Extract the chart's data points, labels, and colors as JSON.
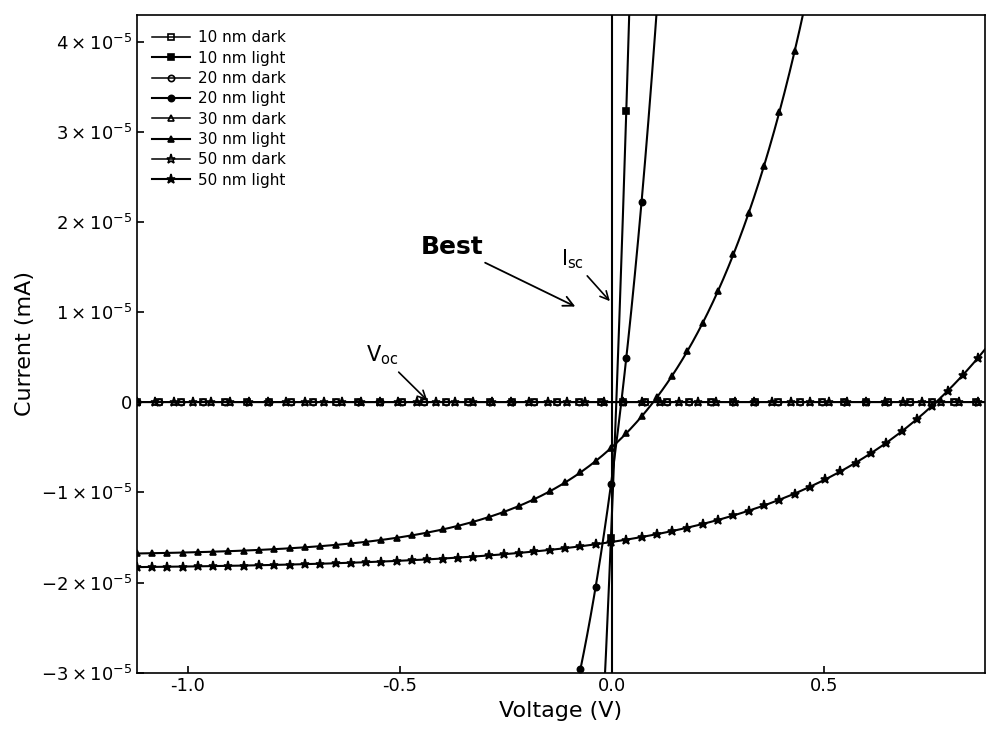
{
  "xlim": [
    -1.12,
    0.88
  ],
  "ylim": [
    -3e-05,
    4.3e-05
  ],
  "xlabel": "Voltage (V)",
  "ylabel": "Current (mA)",
  "ytick_vals": [
    -3e-05,
    -2e-05,
    -1e-05,
    0,
    1e-05,
    2e-05,
    3e-05,
    4e-05
  ],
  "xtick_vals": [
    -1.0,
    -0.5,
    0.0,
    0.5
  ],
  "vline_x": 0.0,
  "background_color": "white",
  "legend_fontsize": 11,
  "label_fontsize": 16,
  "tick_fontsize": 13,
  "curves": [
    {
      "label": "10 nm dark",
      "marker": "s",
      "fillstyle": "none",
      "ms": 4.5,
      "lw": 1.1,
      "iv_dark": true,
      "I0": 5e-10,
      "nVT": 0.5,
      "Iph": 0.0,
      "markevery": 13
    },
    {
      "label": "10 nm light",
      "marker": "s",
      "fillstyle": "full",
      "ms": 4.5,
      "lw": 1.5,
      "iv_dark": false,
      "I0": 0.00015,
      "nVT": 0.13,
      "Iph": 1.3e-05,
      "markevery": 9
    },
    {
      "label": "20 nm dark",
      "marker": "o",
      "fillstyle": "none",
      "ms": 4.5,
      "lw": 1.1,
      "iv_dark": true,
      "I0": 2e-10,
      "nVT": 0.5,
      "Iph": 0.0,
      "markevery": 13
    },
    {
      "label": "20 nm light",
      "marker": "o",
      "fillstyle": "full",
      "ms": 4.5,
      "lw": 1.5,
      "iv_dark": false,
      "I0": 6e-05,
      "nVT": 0.17,
      "Iph": 8.5e-06,
      "markevery": 9
    },
    {
      "label": "30 nm dark",
      "marker": "^",
      "fillstyle": "none",
      "ms": 5.0,
      "lw": 1.1,
      "iv_dark": true,
      "I0": 1e-10,
      "nVT": 0.5,
      "Iph": 0.0,
      "markevery": 11
    },
    {
      "label": "30 nm light",
      "marker": "^",
      "fillstyle": "full",
      "ms": 5.0,
      "lw": 1.5,
      "iv_dark": false,
      "I0": 1.2e-05,
      "nVT": 0.28,
      "Iph": 5e-06,
      "markevery": 9
    },
    {
      "label": "50 nm dark",
      "marker": "*",
      "fillstyle": "none",
      "ms": 6.5,
      "lw": 1.1,
      "iv_dark": true,
      "I0": 5e-11,
      "nVT": 0.5,
      "Iph": 0.0,
      "markevery": 11
    },
    {
      "label": "50 nm light",
      "marker": "*",
      "fillstyle": "full",
      "ms": 6.5,
      "lw": 1.5,
      "iv_dark": false,
      "I0": 3e-06,
      "nVT": 0.42,
      "Iph": 1.55e-05,
      "markevery": 9
    }
  ]
}
